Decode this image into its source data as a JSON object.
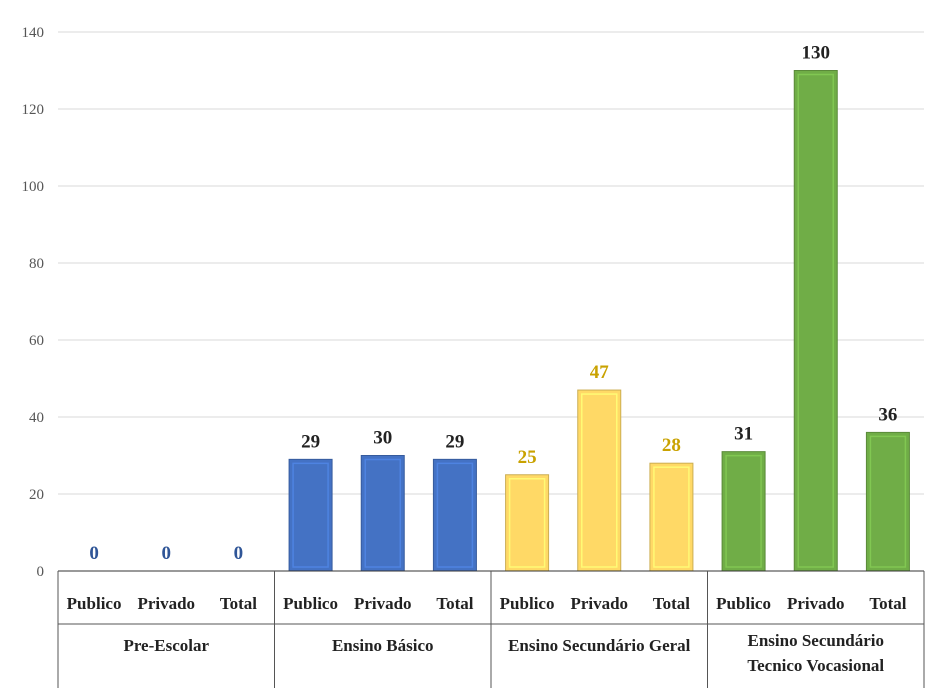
{
  "chart_data": {
    "type": "bar",
    "ylim": [
      0,
      140
    ],
    "yticks": [
      0,
      20,
      40,
      60,
      80,
      100,
      120,
      140
    ],
    "grid": true,
    "groups": [
      {
        "label": [
          "Pre-Escolar"
        ],
        "color": "#2f5597",
        "bars": [
          {
            "category": "Publico",
            "value": 0
          },
          {
            "category": "Privado",
            "value": 0
          },
          {
            "category": "Total",
            "value": 0
          }
        ]
      },
      {
        "label": [
          "Ensino Básico"
        ],
        "color": "#4472c4",
        "bars": [
          {
            "category": "Publico",
            "value": 29
          },
          {
            "category": "Privado",
            "value": 30
          },
          {
            "category": "Total",
            "value": 29
          }
        ]
      },
      {
        "label": [
          "Ensino Secundário Geral"
        ],
        "color": "#ffd966",
        "bars": [
          {
            "category": "Publico",
            "value": 25
          },
          {
            "category": "Privado",
            "value": 47
          },
          {
            "category": "Total",
            "value": 28
          }
        ]
      },
      {
        "label": [
          "Ensino Secundário",
          "Tecnico Vocasional"
        ],
        "color": "#70ad47",
        "bars": [
          {
            "category": "Publico",
            "value": 31
          },
          {
            "category": "Privado",
            "value": 130
          },
          {
            "category": "Total",
            "value": 36
          }
        ]
      }
    ],
    "label_colors": [
      "#2f5597",
      "#222222",
      "#c9a200",
      "#222222"
    ]
  }
}
